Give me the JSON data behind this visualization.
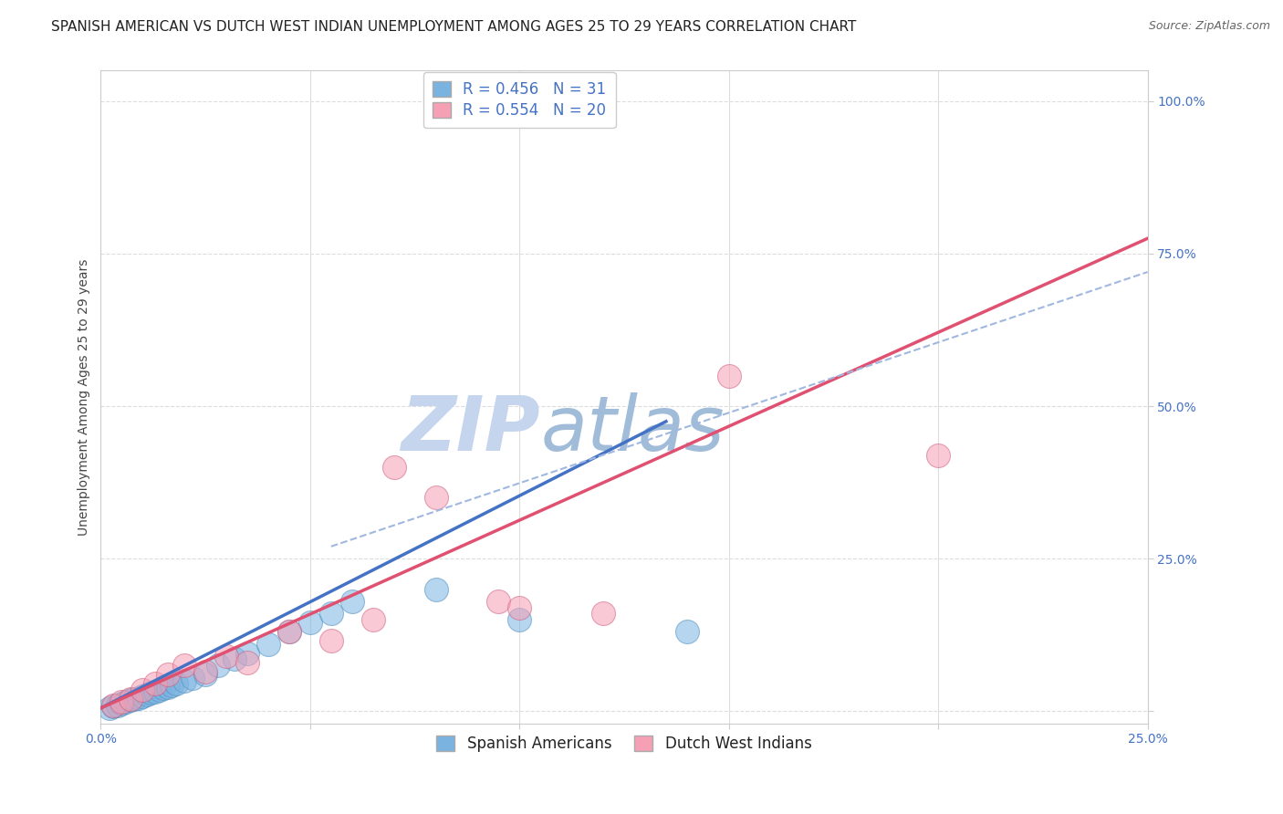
{
  "title": "SPANISH AMERICAN VS DUTCH WEST INDIAN UNEMPLOYMENT AMONG AGES 25 TO 29 YEARS CORRELATION CHART",
  "source": "Source: ZipAtlas.com",
  "ylabel": "Unemployment Among Ages 25 to 29 years",
  "xlim": [
    0.0,
    0.25
  ],
  "ylim": [
    -0.02,
    1.05
  ],
  "xticks": [
    0.0,
    0.05,
    0.1,
    0.15,
    0.2,
    0.25
  ],
  "xticklabels": [
    "0.0%",
    "",
    "",
    "",
    "",
    "25.0%"
  ],
  "yticks": [
    0.0,
    0.25,
    0.5,
    0.75,
    1.0
  ],
  "yticklabels": [
    "",
    "25.0%",
    "50.0%",
    "75.0%",
    "100.0%"
  ],
  "blue_R": 0.456,
  "blue_N": 31,
  "pink_R": 0.554,
  "pink_N": 20,
  "blue_color": "#7ab3e0",
  "pink_color": "#f5a0b5",
  "blue_line_color": "#4472c4",
  "pink_line_color": "#e05070",
  "dashed_line_color": "#a0b8e0",
  "watermark_zip": "ZIP",
  "watermark_atlas": "atlas",
  "watermark_color_zip": "#c5d5ee",
  "watermark_color_atlas": "#a0bcd8",
  "legend_label_blue": "Spanish Americans",
  "legend_label_pink": "Dutch West Indians",
  "blue_scatter_x": [
    0.002,
    0.003,
    0.004,
    0.005,
    0.006,
    0.007,
    0.008,
    0.009,
    0.01,
    0.011,
    0.012,
    0.013,
    0.014,
    0.015,
    0.016,
    0.017,
    0.018,
    0.02,
    0.022,
    0.025,
    0.028,
    0.032,
    0.035,
    0.04,
    0.045,
    0.05,
    0.055,
    0.06,
    0.08,
    0.1,
    0.14
  ],
  "blue_scatter_y": [
    0.005,
    0.008,
    0.01,
    0.012,
    0.015,
    0.018,
    0.02,
    0.022,
    0.025,
    0.028,
    0.03,
    0.032,
    0.035,
    0.038,
    0.04,
    0.042,
    0.045,
    0.05,
    0.055,
    0.06,
    0.075,
    0.085,
    0.095,
    0.11,
    0.13,
    0.145,
    0.16,
    0.18,
    0.2,
    0.15,
    0.13
  ],
  "pink_scatter_x": [
    0.003,
    0.005,
    0.007,
    0.01,
    0.013,
    0.016,
    0.02,
    0.025,
    0.03,
    0.035,
    0.045,
    0.055,
    0.065,
    0.07,
    0.08,
    0.095,
    0.1,
    0.12,
    0.15,
    0.2
  ],
  "pink_scatter_y": [
    0.01,
    0.015,
    0.02,
    0.035,
    0.045,
    0.06,
    0.075,
    0.065,
    0.09,
    0.08,
    0.13,
    0.115,
    0.15,
    0.4,
    0.35,
    0.18,
    0.17,
    0.16,
    0.55,
    0.42
  ],
  "blue_line_x": [
    0.0,
    0.135
  ],
  "blue_line_y": [
    0.005,
    0.475
  ],
  "pink_line_x": [
    0.0,
    0.25
  ],
  "pink_line_y": [
    0.005,
    0.775
  ],
  "dashed_line_x": [
    0.055,
    0.25
  ],
  "dashed_line_y": [
    0.27,
    0.72
  ],
  "title_fontsize": 11,
  "axis_label_fontsize": 10,
  "tick_fontsize": 10,
  "legend_fontsize": 12,
  "watermark_fontsize_zip": 60,
  "watermark_fontsize_atlas": 60,
  "background_color": "#ffffff",
  "grid_color": "#dddddd",
  "tick_color": "#4472c4"
}
